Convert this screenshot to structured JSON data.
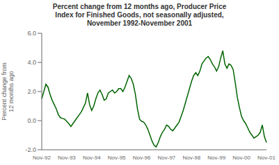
{
  "chart_data": {
    "type": "line",
    "title": "Percent change from 12 months ago, Producer Price\nIndex for Finished Goods, not seasonally adjusted,\nNovember 1992-November 2001",
    "ylabel": "Percent change from\n12 months ago",
    "color": "#006400",
    "grid": false,
    "ylim": [
      -2.0,
      6.0
    ],
    "yticks": [
      {
        "value": -2.0,
        "label": "-2.0"
      },
      {
        "value": 0.0,
        "label": "0.0"
      },
      {
        "value": 2.0,
        "label": "2.0"
      },
      {
        "value": 4.0,
        "label": "4.0"
      },
      {
        "value": 6.0,
        "label": "6.0"
      }
    ],
    "categories": [
      "Nov-92",
      null,
      null,
      null,
      null,
      null,
      null,
      null,
      null,
      null,
      null,
      null,
      "Nov-93",
      null,
      null,
      null,
      null,
      null,
      null,
      null,
      null,
      null,
      null,
      null,
      "Nov-94",
      null,
      null,
      null,
      null,
      null,
      null,
      null,
      null,
      null,
      null,
      null,
      "Nov-95",
      null,
      null,
      null,
      null,
      null,
      null,
      null,
      null,
      null,
      null,
      null,
      "Nov-96",
      null,
      null,
      null,
      null,
      null,
      null,
      null,
      null,
      null,
      null,
      null,
      "Nov-97",
      null,
      null,
      null,
      null,
      null,
      null,
      null,
      null,
      null,
      null,
      null,
      "Nov-98",
      null,
      null,
      null,
      null,
      null,
      null,
      null,
      null,
      null,
      null,
      null,
      "Nov-99",
      null,
      null,
      null,
      null,
      null,
      null,
      null,
      null,
      null,
      null,
      null,
      "Nov-00",
      null,
      null,
      null,
      null,
      null,
      null,
      null,
      null,
      null,
      null,
      null,
      "Nov-01"
    ],
    "values": [
      1.5,
      2.0,
      2.5,
      2.3,
      1.8,
      1.4,
      1.1,
      0.8,
      0.4,
      0.2,
      0.15,
      0.1,
      -0.05,
      -0.2,
      -0.4,
      -0.2,
      0.0,
      0.2,
      0.4,
      0.6,
      0.9,
      1.2,
      1.9,
      1.1,
      0.7,
      1.0,
      1.5,
      1.9,
      2.1,
      1.8,
      1.4,
      1.5,
      1.9,
      2.0,
      2.1,
      1.9,
      2.0,
      2.2,
      2.2,
      2.0,
      2.3,
      2.7,
      3.1,
      2.9,
      2.5,
      1.8,
      0.8,
      0.1,
      -0.05,
      -0.1,
      -0.3,
      -0.6,
      -1.0,
      -1.4,
      -1.7,
      -1.8,
      -1.5,
      -1.1,
      -0.8,
      -0.6,
      -0.3,
      -0.4,
      -0.6,
      -0.7,
      -0.5,
      -0.3,
      -0.1,
      0.3,
      0.7,
      1.2,
      1.7,
      2.2,
      2.7,
      3.1,
      3.3,
      3.1,
      3.4,
      3.9,
      4.1,
      4.3,
      4.4,
      4.2,
      3.9,
      3.7,
      3.4,
      3.7,
      4.3,
      4.8,
      3.9,
      3.6,
      3.9,
      3.8,
      3.5,
      2.6,
      1.6,
      0.9,
      0.3,
      0.0,
      -0.2,
      -0.5,
      -0.8,
      -1.0,
      -1.2,
      -1.1,
      -1.0,
      -0.8,
      -0.3,
      -1.1,
      -1.5
    ]
  }
}
